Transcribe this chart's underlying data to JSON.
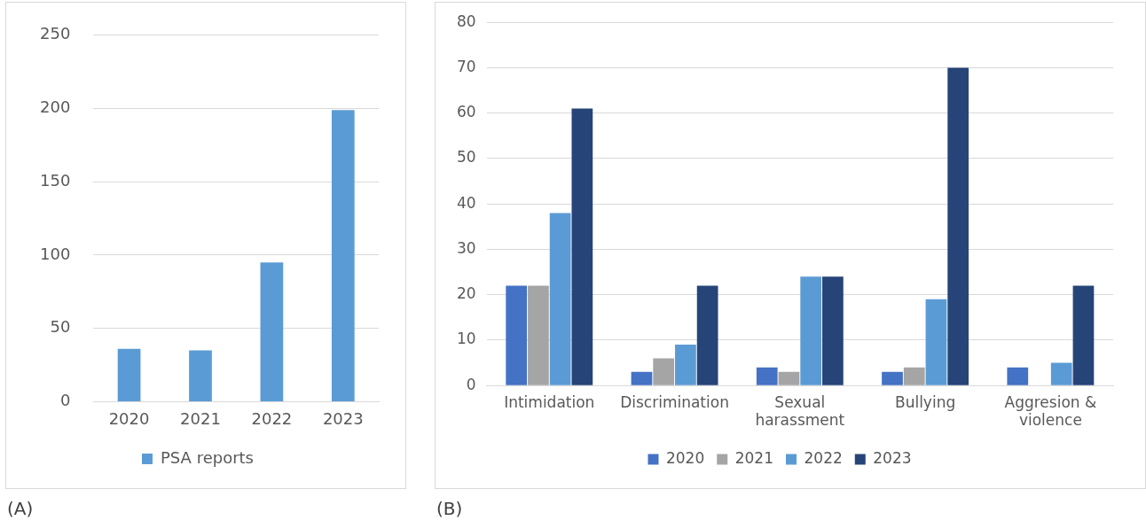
{
  "chart_data": [
    {
      "type": "bar",
      "categories": [
        "2020",
        "2021",
        "2022",
        "2023"
      ],
      "series": [
        {
          "name": "PSA reports",
          "color": "#5b9bd5",
          "values": [
            36,
            35,
            95,
            199
          ]
        }
      ],
      "ylim": [
        0,
        250
      ],
      "yticks": [
        0,
        50,
        100,
        150,
        200,
        250
      ],
      "grid": "y",
      "legend": "bottom",
      "annotations": [
        "(A)"
      ]
    },
    {
      "type": "bar",
      "categories": [
        "Intimidation",
        "Discrimination",
        "Sexual harassment",
        "Bullying",
        "Aggresion & violence"
      ],
      "series": [
        {
          "name": "2020",
          "color": "#4472c4",
          "values": [
            22,
            3,
            4,
            3,
            4
          ]
        },
        {
          "name": "2021",
          "color": "#a5a5a5",
          "values": [
            22,
            6,
            3,
            4,
            0
          ]
        },
        {
          "name": "2022",
          "color": "#5b9bd5",
          "values": [
            38,
            9,
            24,
            19,
            5
          ]
        },
        {
          "name": "2023",
          "color": "#264478",
          "values": [
            61,
            22,
            24,
            70,
            22
          ]
        }
      ],
      "ylim": [
        0,
        80
      ],
      "yticks": [
        0,
        10,
        20,
        30,
        40,
        50,
        60,
        70,
        80
      ],
      "grid": "y",
      "legend": "bottom",
      "annotations": [
        "(B)"
      ]
    }
  ]
}
